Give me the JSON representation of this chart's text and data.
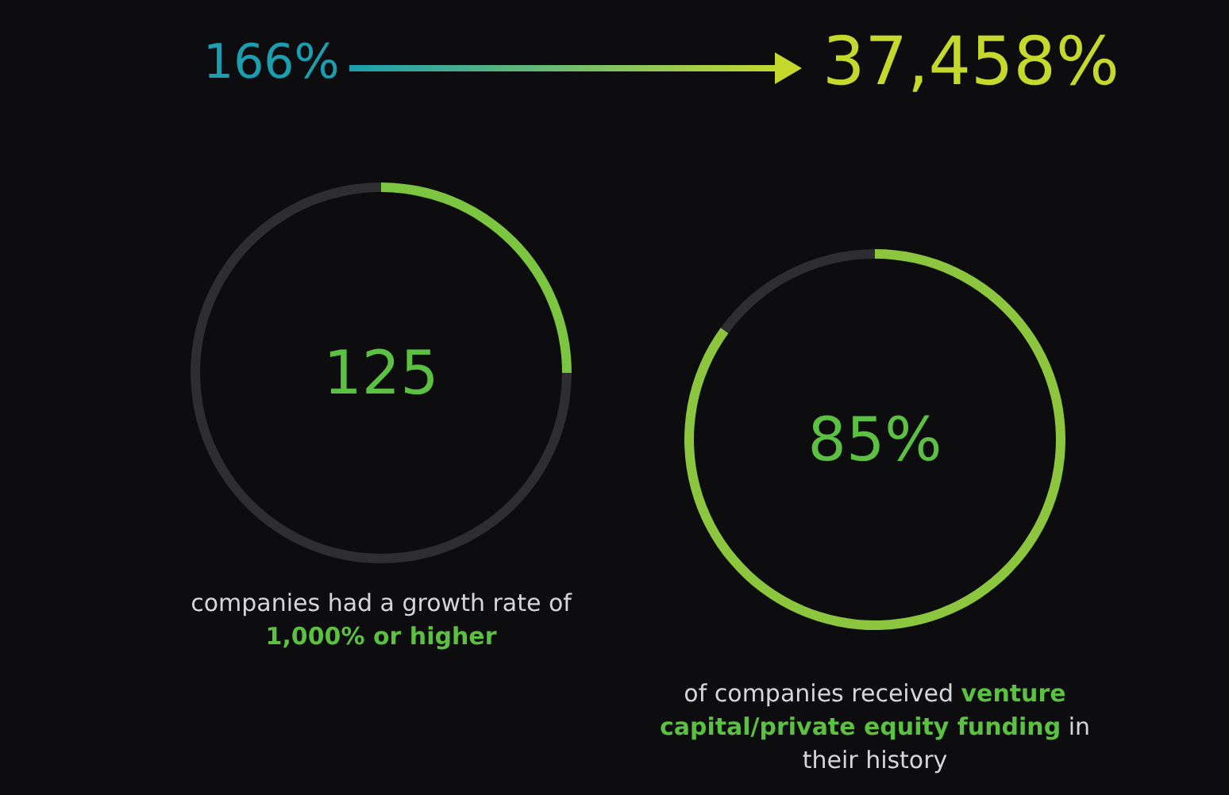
{
  "chart_data": [
    {
      "type": "other",
      "annotations": [
        "166%",
        "37,458%"
      ]
    },
    {
      "type": "donut",
      "categories": [
        null,
        null
      ],
      "values": [
        25,
        75
      ],
      "colors": [
        "#7cc540",
        "#2d2d32"
      ],
      "annotations": [
        "125",
        "companies had a growth rate of ",
        "1,000% or higher"
      ]
    },
    {
      "type": "donut",
      "categories": [
        null,
        null
      ],
      "values": [
        85,
        15
      ],
      "colors": [
        "#8cc63f",
        "#2d2d32"
      ],
      "annotations": [
        "85%",
        "of companies received ",
        "venture capital/private equity funding",
        " in their history"
      ]
    }
  ]
}
